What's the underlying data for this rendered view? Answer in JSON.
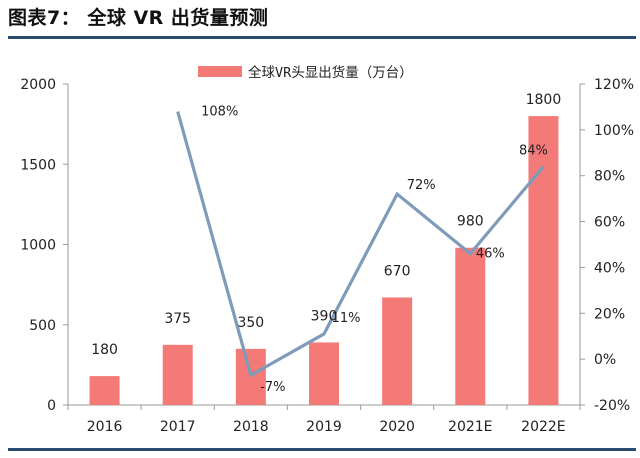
{
  "figure": {
    "title": "图表7：  全球 VR 出货量预测"
  },
  "colors": {
    "bar": "#f47a78",
    "line": "#7f9bba",
    "rule": "#2b4a6f",
    "axis": "#9a9a9a"
  },
  "chart_data": {
    "type": "bar",
    "categories": [
      "2016",
      "2017",
      "2018",
      "2019",
      "2020",
      "2021E",
      "2022E"
    ],
    "series": [
      {
        "name": "全球VR头显出货量（万台）",
        "type": "bar",
        "axis": "left",
        "values": [
          180,
          375,
          350,
          390,
          670,
          980,
          1800
        ],
        "labels": [
          "180",
          "375",
          "350",
          "390",
          "670",
          "980",
          "1800"
        ]
      },
      {
        "type": "line",
        "axis": "right",
        "values": [
          null,
          108,
          -7,
          11,
          72,
          46,
          84
        ],
        "labels": [
          "",
          "108%",
          "-7%",
          "11%",
          "72%",
          "46%",
          "84%"
        ]
      }
    ],
    "y_left": {
      "ylim": [
        0,
        2000
      ],
      "ticks": [
        0,
        500,
        1000,
        1500,
        2000
      ],
      "tick_labels": [
        "0",
        "500",
        "1000",
        "1500",
        "2000"
      ]
    },
    "y_right": {
      "ylim": [
        -20,
        120
      ],
      "ticks": [
        -20,
        0,
        20,
        40,
        60,
        80,
        100,
        120
      ],
      "tick_labels": [
        "-20%",
        "0%",
        "20%",
        "40%",
        "60%",
        "80%",
        "100%",
        "120%"
      ]
    },
    "legend": {
      "position": "top-center",
      "entries": [
        "全球VR头显出货量（万台）"
      ]
    },
    "grid": false
  }
}
